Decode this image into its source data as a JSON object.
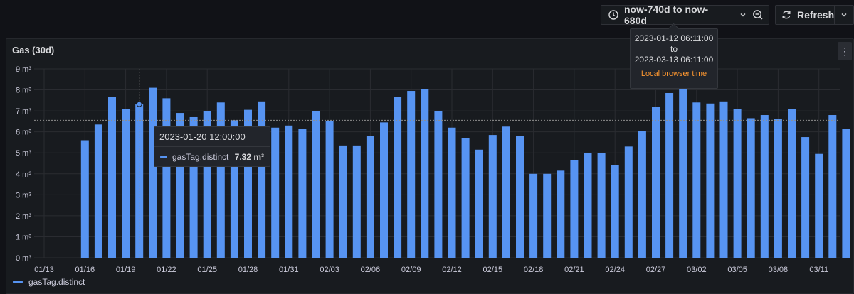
{
  "toolbar": {
    "time_range_label": "now-740d to now-680d",
    "refresh_label": "Refresh"
  },
  "time_popover": {
    "from": "2023-01-12 06:11:00",
    "to_word": "to",
    "to": "2023-03-13 06:11:00",
    "timezone": "Local browser time"
  },
  "panel": {
    "title": "Gas (30d)"
  },
  "tooltip": {
    "time": "2023-01-20 12:00:00",
    "series": "gasTag.distinct",
    "value": "7.32 m³"
  },
  "legend": {
    "series": "gasTag.distinct"
  },
  "colors": {
    "series": "#5794f2",
    "background": "#111217",
    "panel": "#181b1f",
    "accent": "#ff9830"
  },
  "chart_data": {
    "type": "bar",
    "x_start": "2023-01-12",
    "x_end": "2023-03-13",
    "x_tick_labels": [
      "01/13",
      "01/16",
      "01/19",
      "01/22",
      "01/25",
      "01/28",
      "01/31",
      "02/03",
      "02/06",
      "02/09",
      "02/12",
      "02/15",
      "02/18",
      "02/21",
      "02/24",
      "02/27",
      "03/02",
      "03/05",
      "03/08",
      "03/11"
    ],
    "y_tick_labels": [
      "0 m³",
      "1 m³",
      "2 m³",
      "3 m³",
      "4 m³",
      "5 m³",
      "6 m³",
      "7 m³",
      "8 m³",
      "9 m³"
    ],
    "ylim": [
      0,
      9
    ],
    "series": [
      {
        "name": "gasTag.distinct",
        "points": [
          [
            "2023-01-16",
            5.6
          ],
          [
            "2023-01-17",
            6.35
          ],
          [
            "2023-01-18",
            7.65
          ],
          [
            "2023-01-19",
            7.1
          ],
          [
            "2023-01-20",
            7.32
          ],
          [
            "2023-01-21",
            8.1
          ],
          [
            "2023-01-22",
            7.6
          ],
          [
            "2023-01-23",
            6.9
          ],
          [
            "2023-01-24",
            6.7
          ],
          [
            "2023-01-25",
            7.0
          ],
          [
            "2023-01-26",
            7.4
          ],
          [
            "2023-01-27",
            6.55
          ],
          [
            "2023-01-28",
            7.05
          ],
          [
            "2023-01-29",
            7.45
          ],
          [
            "2023-01-30",
            6.2
          ],
          [
            "2023-01-31",
            6.3
          ],
          [
            "2023-02-01",
            6.15
          ],
          [
            "2023-02-02",
            7.0
          ],
          [
            "2023-02-03",
            6.5
          ],
          [
            "2023-02-04",
            5.35
          ],
          [
            "2023-02-05",
            5.35
          ],
          [
            "2023-02-06",
            5.8
          ],
          [
            "2023-02-07",
            6.45
          ],
          [
            "2023-02-08",
            7.65
          ],
          [
            "2023-02-09",
            7.95
          ],
          [
            "2023-02-10",
            8.05
          ],
          [
            "2023-02-11",
            7.0
          ],
          [
            "2023-02-12",
            6.2
          ],
          [
            "2023-02-13",
            5.7
          ],
          [
            "2023-02-14",
            5.15
          ],
          [
            "2023-02-15",
            5.85
          ],
          [
            "2023-02-16",
            6.25
          ],
          [
            "2023-02-17",
            5.8
          ],
          [
            "2023-02-18",
            4.0
          ],
          [
            "2023-02-19",
            4.0
          ],
          [
            "2023-02-20",
            4.15
          ],
          [
            "2023-02-21",
            4.65
          ],
          [
            "2023-02-22",
            5.0
          ],
          [
            "2023-02-23",
            5.0
          ],
          [
            "2023-02-24",
            4.4
          ],
          [
            "2023-02-25",
            5.3
          ],
          [
            "2023-02-26",
            6.05
          ],
          [
            "2023-02-27",
            7.2
          ],
          [
            "2023-02-28",
            7.85
          ],
          [
            "2023-03-01",
            8.1
          ],
          [
            "2023-03-02",
            7.4
          ],
          [
            "2023-03-03",
            7.35
          ],
          [
            "2023-03-04",
            7.45
          ],
          [
            "2023-03-05",
            7.1
          ],
          [
            "2023-03-06",
            6.65
          ],
          [
            "2023-03-07",
            6.8
          ],
          [
            "2023-03-08",
            6.6
          ],
          [
            "2023-03-09",
            7.1
          ],
          [
            "2023-03-10",
            5.75
          ],
          [
            "2023-03-11",
            4.95
          ],
          [
            "2023-03-12",
            6.8
          ],
          [
            "2023-03-13",
            6.15
          ]
        ]
      }
    ]
  }
}
